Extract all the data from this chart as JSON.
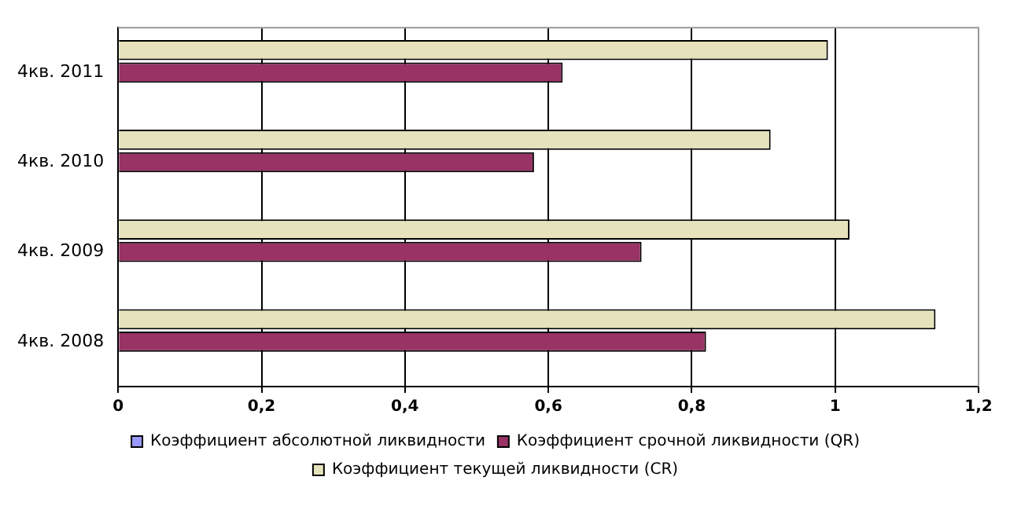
{
  "chart_data": {
    "type": "bar",
    "orientation": "horizontal",
    "categories": [
      "4кв. 2011",
      "4кв. 2010",
      "4кв. 2009",
      "4кв. 2008"
    ],
    "series": [
      {
        "name": "Коэффициент абсолютной ликвидности",
        "color": "#9999ff",
        "values": [
          0,
          0,
          0,
          0
        ]
      },
      {
        "name": "Коэффициент срочной ликвидности (QR)",
        "color": "#993366",
        "values": [
          0.62,
          0.58,
          0.73,
          0.82
        ]
      },
      {
        "name": "Коэффициент текущей ликвидности (CR)",
        "color": "#e6e2bc",
        "values": [
          0.99,
          0.91,
          1.02,
          1.14
        ]
      }
    ],
    "xlim": [
      0,
      1.2
    ],
    "xticks": [
      0,
      {
        "value": 0.2,
        "label": "0,2"
      },
      {
        "value": 0.4,
        "label": "0,4"
      },
      {
        "value": 0.6,
        "label": "0,6"
      },
      {
        "value": 0.8,
        "label": "0,8"
      },
      1,
      {
        "value": 1.2,
        "label": "1,2"
      }
    ],
    "grid": "x",
    "legend": "bottom"
  }
}
